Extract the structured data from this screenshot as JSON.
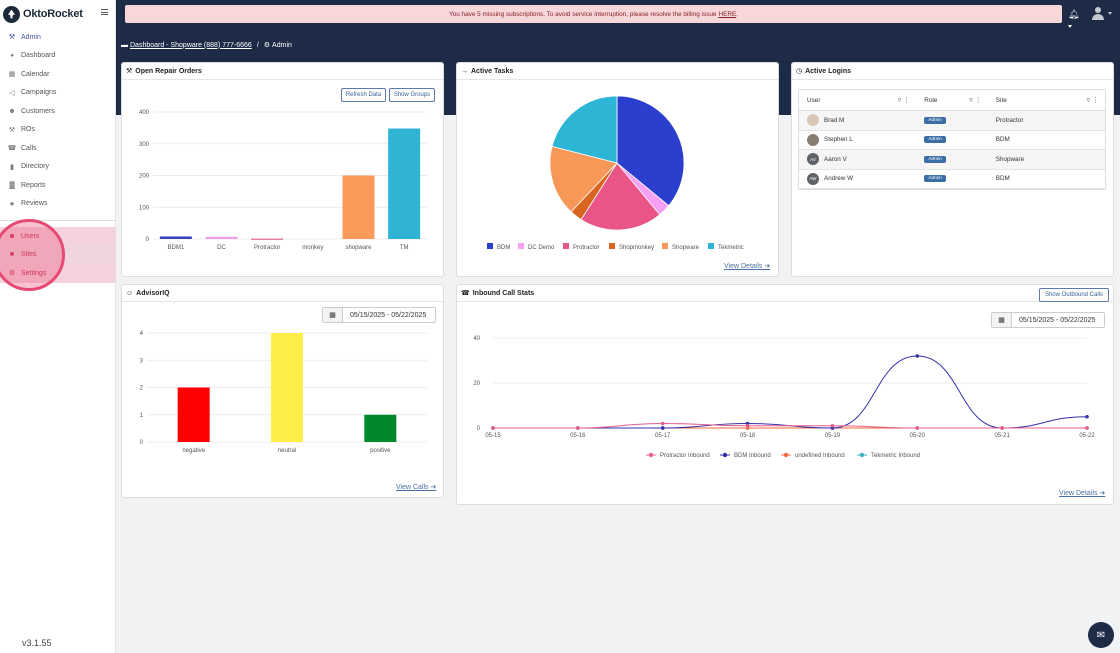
{
  "app": {
    "logo_text": "OktoRocket",
    "version": "v3.1.55"
  },
  "sidebar": {
    "items": [
      {
        "label": "Admin",
        "icon": "wrench-icon"
      },
      {
        "label": "Dashboard",
        "icon": "gauge-icon"
      },
      {
        "label": "Calendar",
        "icon": "calendar-icon"
      },
      {
        "label": "Campaigns",
        "icon": "megaphone-icon"
      },
      {
        "label": "Customers",
        "icon": "users-icon"
      },
      {
        "label": "ROs",
        "icon": "wrench-icon"
      },
      {
        "label": "Calls",
        "icon": "phone-icon"
      },
      {
        "label": "Directory",
        "icon": "book-icon"
      },
      {
        "label": "Reports",
        "icon": "bar-chart-icon"
      },
      {
        "label": "Reviews",
        "icon": "star-icon"
      }
    ],
    "admin_items": [
      {
        "label": "Users",
        "icon": "users-icon"
      },
      {
        "label": "Sites",
        "icon": "building-icon"
      },
      {
        "label": "Settings",
        "icon": "gear-icon"
      }
    ]
  },
  "alert": {
    "text": "You have 5 missing subscriptions. To avoid service interruption, please resolve the billing issue",
    "link": "HERE",
    "suffix": "."
  },
  "breadcrumb": {
    "link": "Dashboard - Shopware (888) 777-6666",
    "sep": "/",
    "current": "Admin"
  },
  "repair_orders": {
    "title": "Open Repair Orders",
    "refresh_label": "Refresh Data",
    "groups_label": "Show Groups",
    "chart_data": {
      "type": "bar",
      "categories": [
        "BDM1",
        "DC",
        "Protractor",
        "monkey",
        "shopware",
        "TM"
      ],
      "values": [
        8,
        7,
        1,
        0,
        200,
        348
      ],
      "colors": [
        "#3742b5",
        "#ef9ef0",
        "#e0467a",
        "#d66a2a",
        "#fb9a5a",
        "#2fb4d3"
      ],
      "yticks": [
        0,
        100,
        200,
        300,
        400
      ],
      "ylim": [
        0,
        400
      ]
    }
  },
  "active_tasks": {
    "title": "Active Tasks",
    "view_label": "View Details",
    "chart_data": {
      "type": "pie",
      "labels": [
        "BDM",
        "DC Demo",
        "Protractor",
        "Shopmonkey",
        "Shopware",
        "Tekmetric"
      ],
      "values": [
        36,
        3,
        20,
        3,
        17,
        21
      ],
      "colors": [
        "#2b3fce",
        "#f5a0f3",
        "#e95586",
        "#d8651f",
        "#f89858",
        "#2cb5d4"
      ]
    }
  },
  "active_logins": {
    "title": "Active Logins",
    "columns": [
      "User",
      "Role",
      "Site"
    ],
    "rows": [
      {
        "user": "Brad M",
        "initials": "",
        "role": "Admin",
        "site": "Protractor"
      },
      {
        "user": "Stephen L",
        "initials": "",
        "role": "Admin",
        "site": "BDM"
      },
      {
        "user": "Aaron V",
        "initials": "AV",
        "role": "Admin",
        "site": "Shopware"
      },
      {
        "user": "Andrew W",
        "initials": "AW",
        "role": "Admin",
        "site": "BDM"
      }
    ]
  },
  "advisoriq": {
    "title": "AdvisorIQ",
    "date_range": "05/15/2025 - 05/22/2025",
    "view_label": "View Calls",
    "chart_data": {
      "type": "bar",
      "categories": [
        "negative",
        "neutral",
        "positive"
      ],
      "values": [
        2,
        4,
        1
      ],
      "colors": [
        "#ff0000",
        "#ffee4a",
        "#00882b"
      ],
      "yticks": [
        0,
        1,
        2,
        3,
        4
      ],
      "ylim": [
        0,
        4
      ]
    }
  },
  "inbound_calls": {
    "title": "Inbound Call Stats",
    "outbound_label": "Show Outbound Calls",
    "date_range": "05/15/2025 - 05/22/2025",
    "view_label": "View Details",
    "chart_data": {
      "type": "line",
      "x": [
        "05-15",
        "05-16",
        "05-17",
        "05-18",
        "05-19",
        "05-20",
        "05-21",
        "05-22"
      ],
      "yticks": [
        0,
        20,
        40
      ],
      "ylim": [
        0,
        40
      ],
      "series": [
        {
          "name": "Protractor Inbound",
          "color": "#e75f8c",
          "values": [
            0,
            0,
            2,
            1,
            1,
            0,
            0,
            0
          ]
        },
        {
          "name": "BDM Inbound",
          "color": "#3531a8",
          "values": [
            0,
            0,
            0,
            2,
            0,
            32,
            0,
            5
          ]
        },
        {
          "name": "undefined Inbound",
          "color": "#f06a3a",
          "values": [
            0,
            0,
            0,
            0,
            0,
            0,
            0,
            0
          ]
        },
        {
          "name": "Tekmetric Inbound",
          "color": "#39b0c0",
          "values": [
            0,
            0,
            0,
            0,
            0,
            0,
            0,
            0
          ]
        }
      ]
    }
  }
}
